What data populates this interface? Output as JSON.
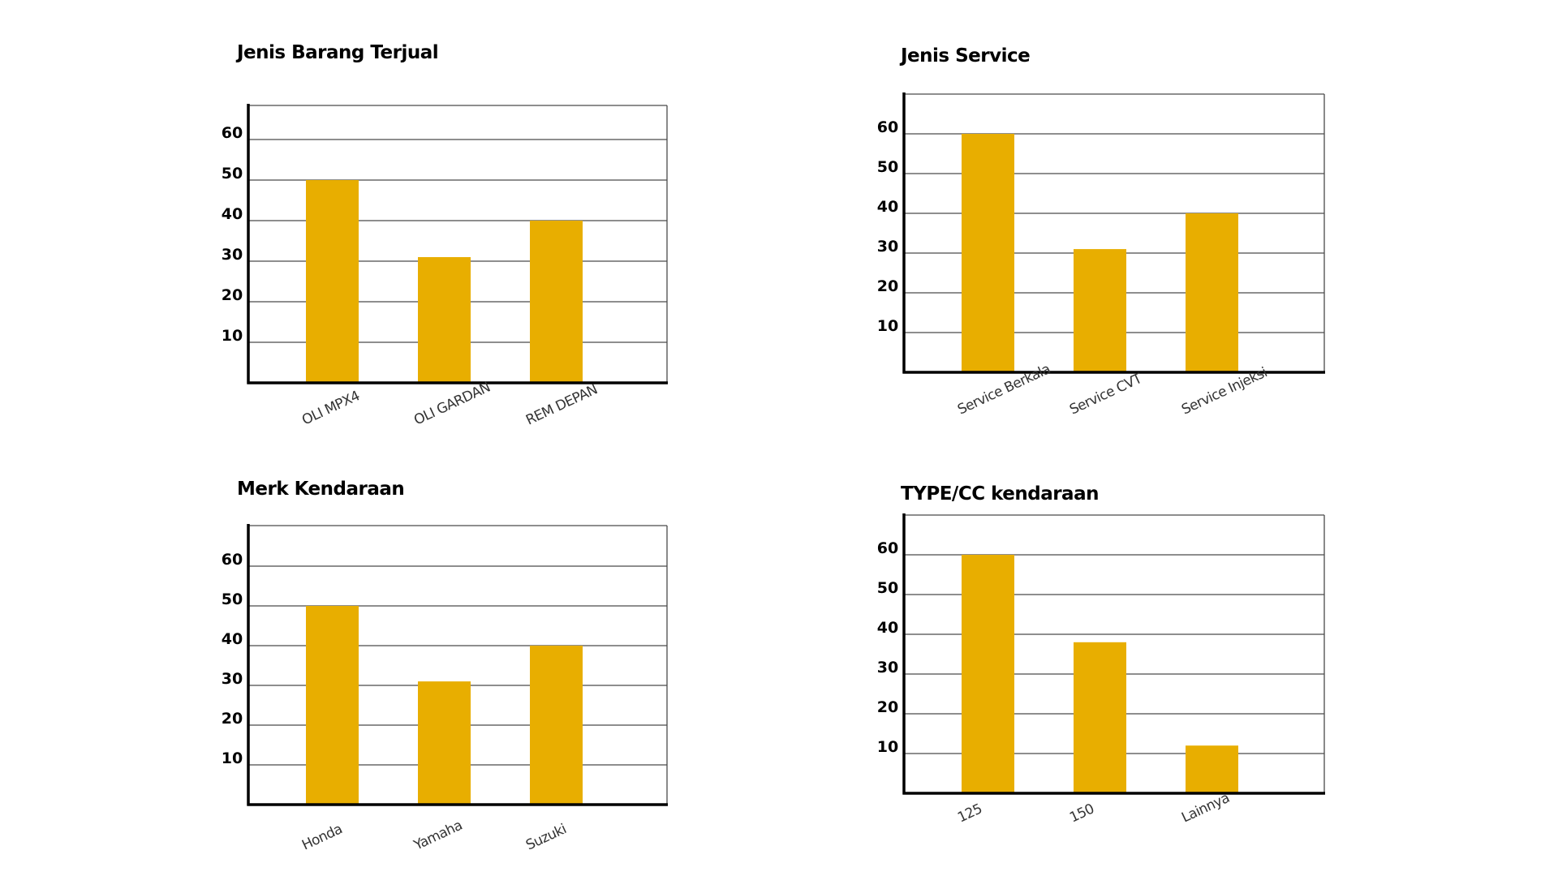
{
  "theme": {
    "bar_color": "#E8AE00",
    "background": "#FFFFFF",
    "axis_color": "#000000",
    "grid_color": "#4A4A4A"
  },
  "chart_data": [
    {
      "type": "bar",
      "title": "Jenis Barang Terjual",
      "categories": [
        "OLI MPX4",
        "OLI GARDAN",
        "REM DEPAN"
      ],
      "values": [
        50,
        31,
        40
      ],
      "yticks": [
        10,
        20,
        30,
        40,
        50,
        60
      ],
      "ylim": [
        0,
        70
      ],
      "grid": true,
      "xlabel": "",
      "ylabel": ""
    },
    {
      "type": "bar",
      "title": "Jenis Service",
      "categories": [
        "Service Berkala",
        "Service CVT",
        "Service Injeksi"
      ],
      "values": [
        60,
        31,
        40
      ],
      "yticks": [
        10,
        20,
        30,
        40,
        50,
        60
      ],
      "ylim": [
        0,
        70
      ],
      "grid": true,
      "xlabel": "",
      "ylabel": ""
    },
    {
      "type": "bar",
      "title": "Merk Kendaraan",
      "categories": [
        "Honda",
        "Yamaha",
        "Suzuki"
      ],
      "values": [
        50,
        31,
        40
      ],
      "yticks": [
        10,
        20,
        30,
        40,
        50,
        60
      ],
      "ylim": [
        0,
        70
      ],
      "grid": true,
      "xlabel": "",
      "ylabel": ""
    },
    {
      "type": "bar",
      "title": "TYPE/CC kendaraan",
      "categories": [
        "125",
        "150",
        "Lainnya"
      ],
      "values": [
        60,
        38,
        12
      ],
      "yticks": [
        10,
        20,
        30,
        40,
        50,
        60
      ],
      "ylim": [
        0,
        70
      ],
      "grid": true,
      "xlabel": "",
      "ylabel": ""
    }
  ]
}
